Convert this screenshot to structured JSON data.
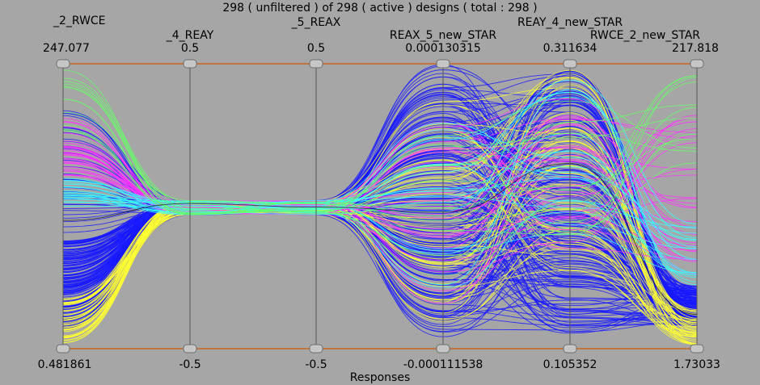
{
  "header": {
    "title": "298 ( unfiltered ) of 298 ( active ) designs ( total : 298 )"
  },
  "footer": {
    "label": "Responses"
  },
  "colors": {
    "background": "#a6a6a6",
    "axis_line": "#555555",
    "range_line": "#c8641e",
    "series": [
      "#1a1aff",
      "#ffff33",
      "#ff33ff",
      "#33ffff",
      "#66ff66",
      "#222222"
    ]
  },
  "chart_data": {
    "type": "parallel_coordinates",
    "title": "298 ( unfiltered ) of 298 ( active ) designs ( total : 298 )",
    "xlabel": "Responses",
    "design_count": 298,
    "axes": [
      {
        "name": "_2_RWCE",
        "max_label": "247.077",
        "min_label": "0.481861",
        "max": 247.077,
        "min": 0.481861
      },
      {
        "name": "_4_REAY",
        "max_label": "0.5",
        "min_label": "-0.5",
        "max": 0.5,
        "min": -0.5
      },
      {
        "name": "_5_REAX",
        "max_label": "0.5",
        "min_label": "-0.5",
        "max": 0.5,
        "min": -0.5
      },
      {
        "name": "REAX_5_new_STAR",
        "max_label": "0.000130315",
        "min_label": "-0.000111538",
        "max": 0.000130315,
        "min": -0.000111538
      },
      {
        "name": "REAY_4_new_STAR",
        "max_label": "0.311634",
        "min_label": "0.105352",
        "max": 0.311634,
        "min": 0.105352
      },
      {
        "name": "RWCE_2_new_STAR",
        "max_label": "217.818",
        "min_label": "1.73033",
        "max": 217.818,
        "min": 1.73033
      }
    ],
    "color_groups": [
      {
        "color": "#1a1aff",
        "count": 190
      },
      {
        "color": "#ffff33",
        "count": 45
      },
      {
        "color": "#ff33ff",
        "count": 30
      },
      {
        "color": "#33ffff",
        "count": 20
      },
      {
        "color": "#66ff66",
        "count": 12
      },
      {
        "color": "#222222",
        "count": 1
      }
    ]
  }
}
